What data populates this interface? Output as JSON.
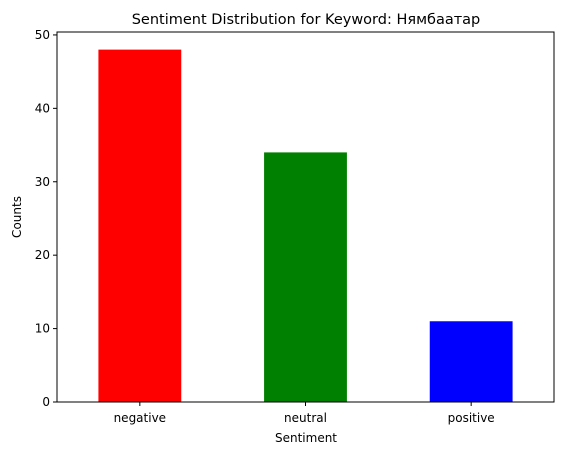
{
  "chart_data": {
    "type": "bar",
    "title": "Sentiment Distribution for Keyword: Нямбаатар",
    "xlabel": "Sentiment",
    "ylabel": "Counts",
    "categories": [
      "negative",
      "neutral",
      "positive"
    ],
    "values": [
      48,
      34,
      11
    ],
    "colors": [
      "#ff0000",
      "#008000",
      "#0000ff"
    ],
    "ylim": [
      0,
      50.4
    ],
    "yticks": [
      0,
      10,
      20,
      30,
      40,
      50
    ],
    "grid": false,
    "legend": "none"
  }
}
